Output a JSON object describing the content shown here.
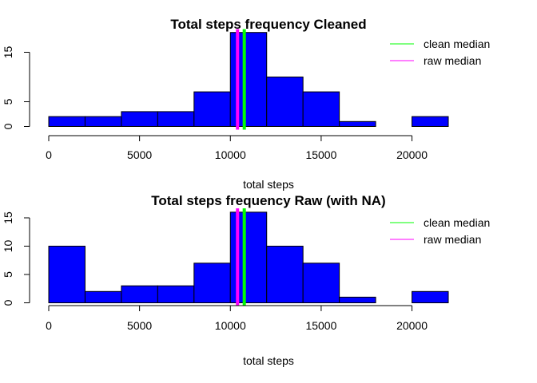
{
  "chart_data": [
    {
      "type": "bar",
      "title": "Total steps frequency Cleaned",
      "xlabel": "total steps",
      "ylabel": "",
      "bin_edges": [
        0,
        2000,
        4000,
        6000,
        8000,
        10000,
        12000,
        14000,
        16000,
        18000,
        20000,
        22000
      ],
      "values": [
        2,
        2,
        3,
        3,
        7,
        19,
        10,
        7,
        1,
        0,
        2
      ],
      "xlim": [
        0,
        22000
      ],
      "ylim": [
        0,
        19
      ],
      "x_ticks": [
        0,
        5000,
        10000,
        15000,
        20000
      ],
      "x_tick_labels": [
        "0",
        "5000",
        "10000",
        "15000",
        "20000"
      ],
      "y_ticks": [
        0,
        5,
        15
      ],
      "y_tick_labels": [
        "0",
        "5",
        "15"
      ],
      "bar_color": "#0000ff",
      "medians": [
        {
          "name": "clean median",
          "value": 10766,
          "color": "#00ff00"
        },
        {
          "name": "raw median",
          "value": 10395,
          "color": "#ff00ff"
        }
      ],
      "legend": {
        "position": "top-right",
        "entries": [
          "clean median",
          "raw median"
        ]
      }
    },
    {
      "type": "bar",
      "title": "Total steps frequency Raw (with NA)",
      "xlabel": "total steps",
      "ylabel": "",
      "bin_edges": [
        0,
        2000,
        4000,
        6000,
        8000,
        10000,
        12000,
        14000,
        16000,
        18000,
        20000,
        22000
      ],
      "values": [
        10,
        2,
        3,
        3,
        7,
        16,
        10,
        7,
        1,
        0,
        2
      ],
      "xlim": [
        0,
        22000
      ],
      "ylim": [
        0,
        16
      ],
      "x_ticks": [
        0,
        5000,
        10000,
        15000,
        20000
      ],
      "x_tick_labels": [
        "0",
        "5000",
        "10000",
        "15000",
        "20000"
      ],
      "y_ticks": [
        0,
        5,
        10,
        15
      ],
      "y_tick_labels": [
        "0",
        "5",
        "10",
        "15"
      ],
      "bar_color": "#0000ff",
      "medians": [
        {
          "name": "clean median",
          "value": 10766,
          "color": "#00ff00"
        },
        {
          "name": "raw median",
          "value": 10395,
          "color": "#ff00ff"
        }
      ],
      "legend": {
        "position": "top-right",
        "entries": [
          "clean median",
          "raw median"
        ]
      }
    }
  ]
}
